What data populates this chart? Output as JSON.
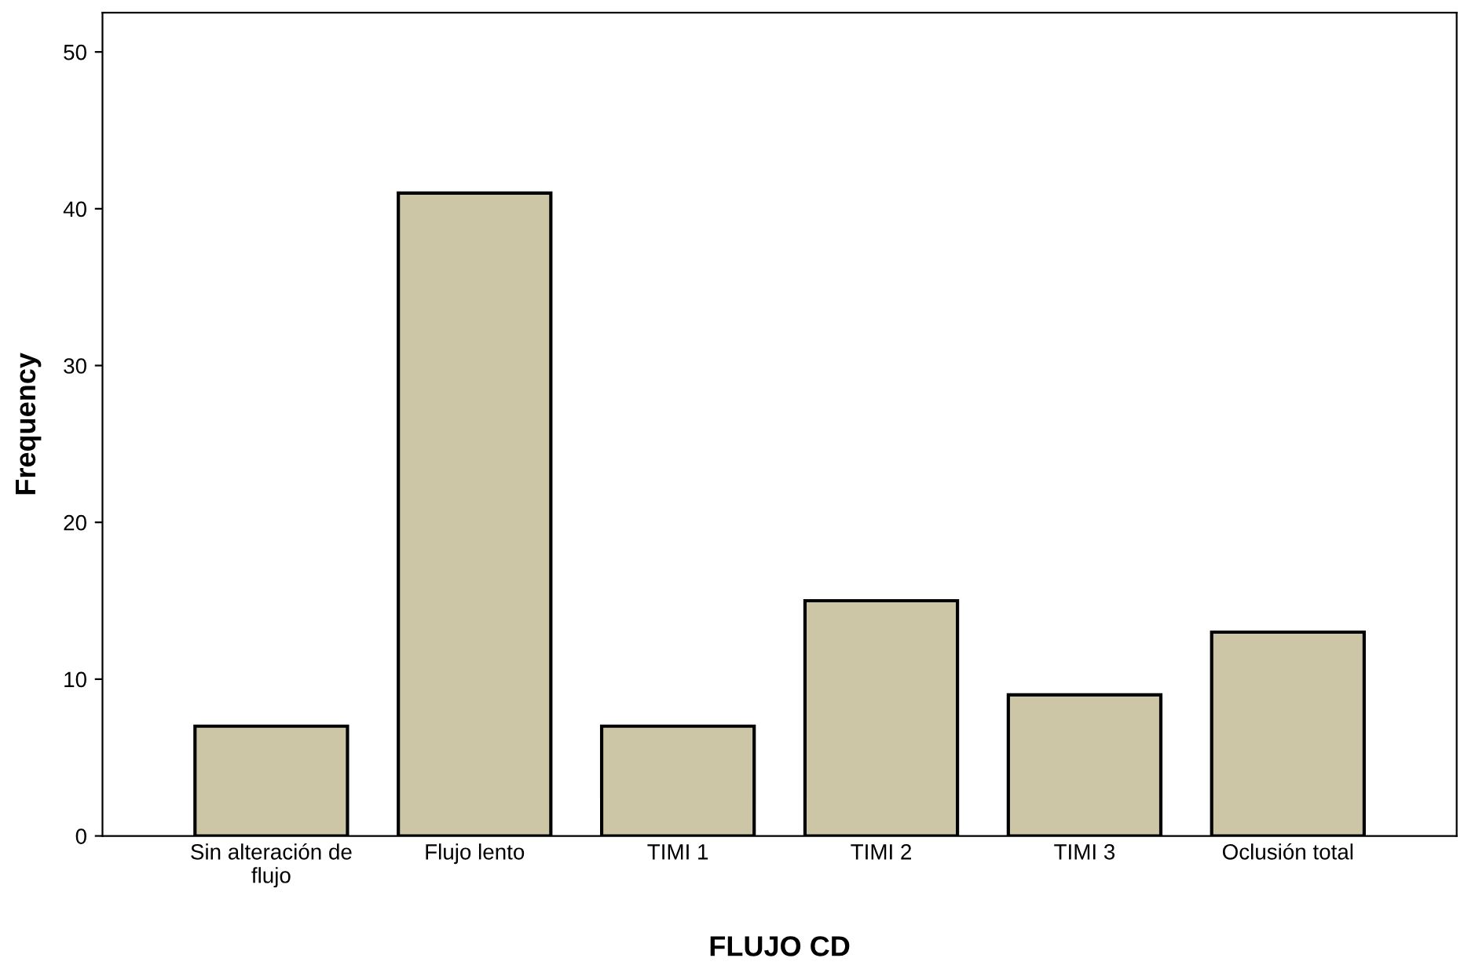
{
  "chart_data": {
    "type": "bar",
    "xlabel": "FLUJO CD",
    "ylabel": "Frequency",
    "categories": [
      "Sin alteración de\nflujo",
      "Flujo lento",
      "TIMI 1",
      "TIMI 2",
      "TIMI 3",
      "Oclusión total"
    ],
    "values": [
      7,
      41,
      7,
      15,
      9,
      13
    ],
    "color": "#cdc6a6",
    "ylim": [
      0,
      52.5
    ],
    "yticks": [
      0,
      10,
      20,
      30,
      40,
      50
    ],
    "grid": false
  }
}
